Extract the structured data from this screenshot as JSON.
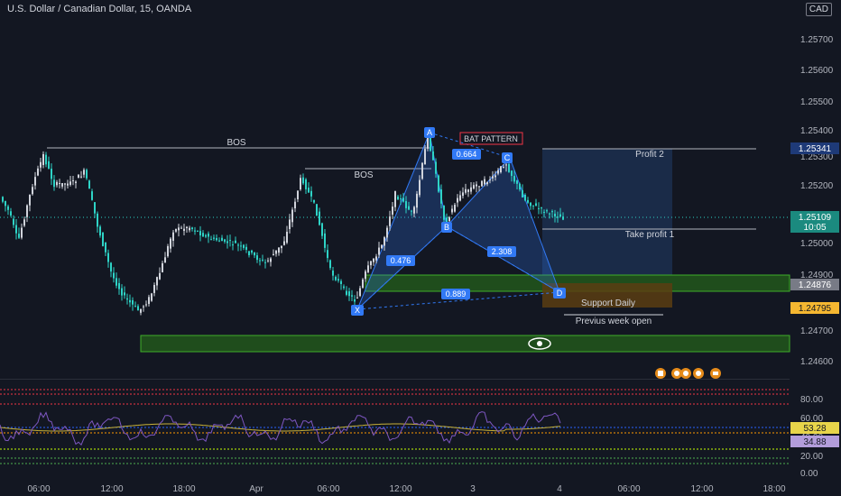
{
  "header": {
    "symbol_line": "U.S. Dollar / Canadian Dollar, 15, OANDA",
    "currency": "CAD"
  },
  "price_axis": {
    "ticks": [
      "1.25700",
      "1.25600",
      "1.25500",
      "1.25400",
      "1.25300",
      "1.25200",
      "1.25000",
      "1.24900",
      "1.24700",
      "1.24600"
    ],
    "ylim": [
      1.2455,
      1.2578
    ],
    "badges": {
      "profit2": "1.25341",
      "current": "1.25109",
      "countdown": "10:05",
      "support": "1.24876",
      "week_open": "1.24795"
    }
  },
  "time_axis": {
    "ticks": [
      "06:00",
      "12:00",
      "18:00",
      "Apr",
      "06:00",
      "12:00",
      "3",
      "06:00",
      "4",
      "06:00",
      "12:00",
      "18:00"
    ]
  },
  "annotations": {
    "bos1": "BOS",
    "bos2": "BOS",
    "pattern": "BAT PATTERN",
    "profit2": "Profit 2",
    "take_profit": "Take profit 1",
    "support": "Support  Daily",
    "week_open": "Previus week open",
    "points": {
      "x": "X",
      "a": "A",
      "b": "B",
      "c": "C",
      "d": "D"
    },
    "ratios": {
      "xb": "0.476",
      "ab": "0.664",
      "bd": "2.308",
      "xd": "0.889"
    }
  },
  "rsi": {
    "levels": [
      "80.00",
      "60.00",
      "40.00",
      "20.00",
      "0.00"
    ],
    "value_a": "53.28",
    "value_b": "34.88"
  },
  "colors": {
    "bull": "#d1d4dc",
    "bear": "#2ed3c6",
    "zone": "#2e7d32",
    "pattern": "#3179f5",
    "bos_line": "#b2b5be"
  }
}
